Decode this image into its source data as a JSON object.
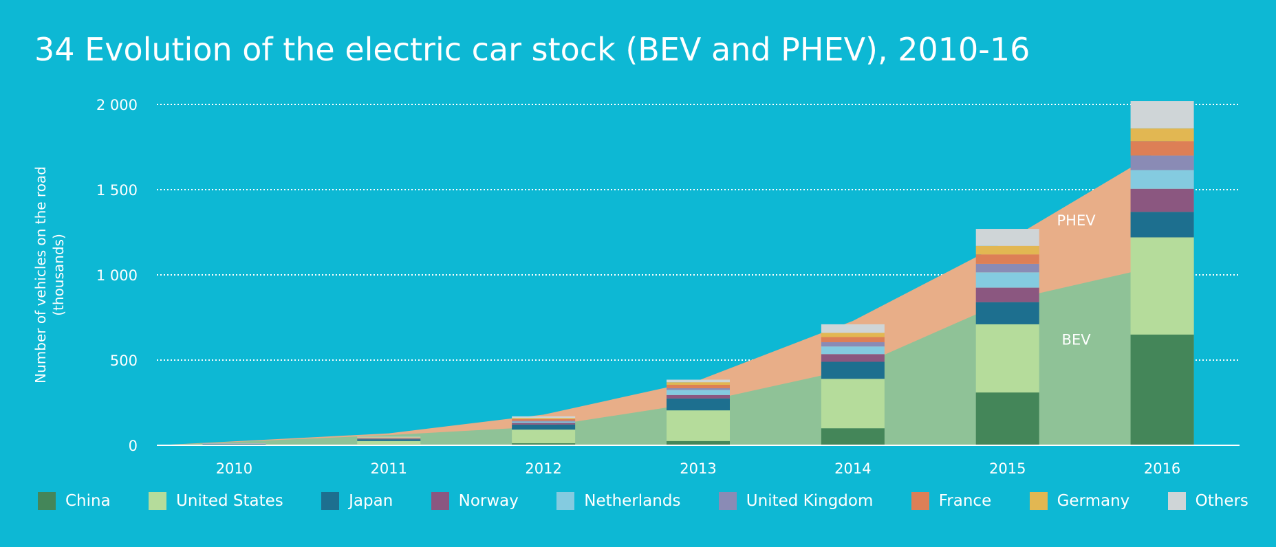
{
  "chart_data": {
    "type": "bar",
    "title": "34 Evolution of the electric car stock (BEV and PHEV), 2010-16",
    "ylabel": [
      "Number of vehicles on the road",
      "(thousands)"
    ],
    "ylim": [
      0,
      2000
    ],
    "yticks": [
      0,
      500,
      1000,
      1500,
      2000
    ],
    "ytick_labels": [
      "0",
      "500",
      "1 000",
      "1 500",
      "2 000"
    ],
    "grid": true,
    "stacked": true,
    "categories": [
      "2010",
      "2011",
      "2012",
      "2013",
      "2014",
      "2015",
      "2016"
    ],
    "series": [
      {
        "name": "China",
        "color": "#448659",
        "values": [
          1,
          5,
          12,
          25,
          100,
          310,
          650
        ]
      },
      {
        "name": "United States",
        "color": "#b5dc9b",
        "values": [
          4,
          20,
          80,
          180,
          290,
          400,
          570
        ]
      },
      {
        "name": "Japan",
        "color": "#1d6f8f",
        "values": [
          3,
          10,
          30,
          70,
          100,
          130,
          150
        ]
      },
      {
        "name": "Norway",
        "color": "#8b5780",
        "values": [
          1,
          3,
          10,
          20,
          45,
          85,
          135
        ]
      },
      {
        "name": "Netherlands",
        "color": "#84cbe0",
        "values": [
          0,
          1,
          7,
          30,
          45,
          90,
          110
        ]
      },
      {
        "name": "United Kingdom",
        "color": "#8a8bb5",
        "values": [
          1,
          2,
          5,
          10,
          25,
          50,
          85
        ]
      },
      {
        "name": "France",
        "color": "#dd7f56",
        "values": [
          0,
          3,
          10,
          20,
          30,
          55,
          85
        ]
      },
      {
        "name": "Germany",
        "color": "#e2b752",
        "values": [
          0,
          2,
          6,
          15,
          25,
          50,
          75
        ]
      },
      {
        "name": "Others",
        "color": "#cfd5d7",
        "values": [
          2,
          4,
          10,
          15,
          50,
          100,
          160
        ]
      }
    ],
    "areas": [
      {
        "name": "BEV",
        "color": "#8fc297",
        "values": [
          0,
          60,
          110,
          250,
          450,
          850,
          1100
        ]
      },
      {
        "name": "PHEV",
        "color": "#e8ae88",
        "values": [
          0,
          70,
          180,
          380,
          730,
          1200,
          1850
        ]
      }
    ],
    "annotations": [
      {
        "text": "PHEV",
        "x": "2016",
        "y": 1290
      },
      {
        "text": "BEV",
        "x": "2016",
        "y": 590
      }
    ]
  }
}
